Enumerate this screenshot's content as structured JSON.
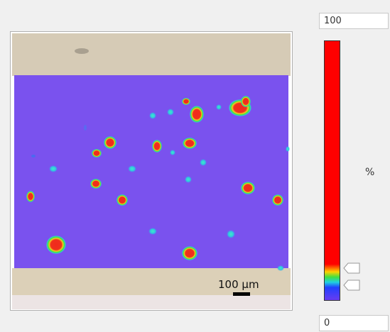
{
  "colorbar": {
    "max_label": "100",
    "min_label": "0",
    "unit": "%"
  },
  "image": {
    "scale_bar": "100 µm"
  }
}
